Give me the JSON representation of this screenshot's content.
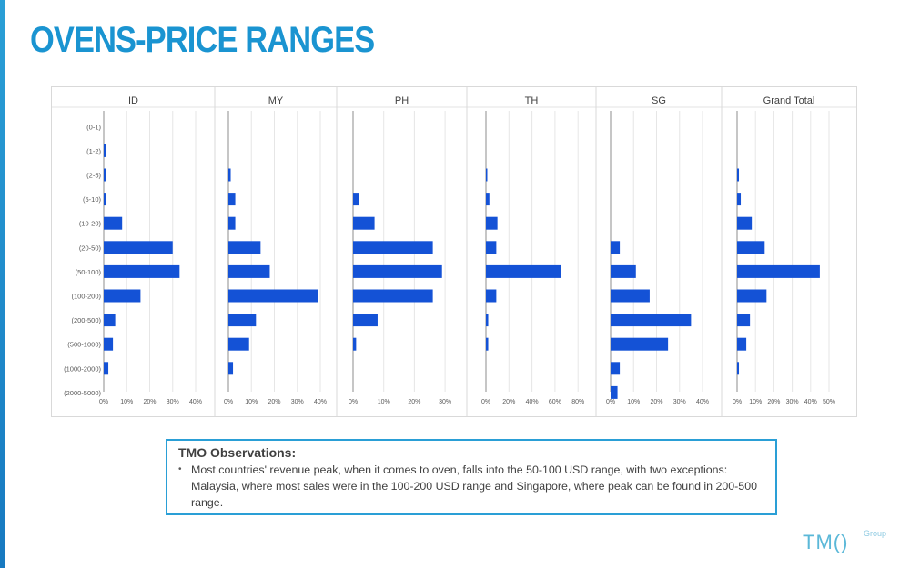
{
  "page": {
    "title": "OVENS-PRICE RANGES"
  },
  "chart_data": {
    "type": "bar",
    "orientation": "horizontal",
    "categories": [
      "(0-1)",
      "(1-2)",
      "(2-5)",
      "(5-10)",
      "(10-20)",
      "(20-50)",
      "(50-100)",
      "(100-200)",
      "(200-500)",
      "(500-1000)",
      "(1000-2000)",
      "(2000-5000)"
    ],
    "panels": [
      {
        "name": "ID",
        "xlim": [
          0,
          45
        ],
        "ticks": [
          0,
          10,
          20,
          30,
          40
        ],
        "tick_labels": [
          "0%",
          "10%",
          "20%",
          "30%",
          "40%"
        ],
        "values": [
          0,
          1,
          1,
          1,
          8,
          30,
          33,
          16,
          5,
          4,
          2,
          0
        ]
      },
      {
        "name": "MY",
        "xlim": [
          0,
          45
        ],
        "ticks": [
          0,
          10,
          20,
          30,
          40
        ],
        "tick_labels": [
          "0%",
          "10%",
          "20%",
          "30%",
          "40%"
        ],
        "values": [
          0,
          0,
          1,
          3,
          3,
          14,
          18,
          39,
          12,
          9,
          2,
          0
        ]
      },
      {
        "name": "PH",
        "xlim": [
          0,
          32
        ],
        "ticks": [
          0,
          10,
          20,
          30
        ],
        "tick_labels": [
          "0%",
          "10%",
          "20%",
          "30%"
        ],
        "values": [
          0,
          0,
          0,
          2,
          7,
          26,
          29,
          26,
          8,
          1,
          0,
          0
        ]
      },
      {
        "name": "TH",
        "xlim": [
          0,
          85
        ],
        "ticks": [
          0,
          20,
          40,
          60,
          80
        ],
        "tick_labels": [
          "0%",
          "20%",
          "40%",
          "60%",
          "80%"
        ],
        "values": [
          0,
          0,
          1,
          3,
          10,
          9,
          65,
          9,
          2,
          2,
          0,
          0
        ]
      },
      {
        "name": "SG",
        "xlim": [
          0,
          45
        ],
        "ticks": [
          0,
          10,
          20,
          30,
          40
        ],
        "tick_labels": [
          "0%",
          "10%",
          "20%",
          "30%",
          "40%"
        ],
        "values": [
          0,
          0,
          0,
          0,
          0,
          4,
          11,
          17,
          35,
          25,
          4,
          3
        ]
      },
      {
        "name": "Grand Total",
        "xlim": [
          0,
          54
        ],
        "ticks": [
          0,
          10,
          20,
          30,
          40,
          50
        ],
        "tick_labels": [
          "0%",
          "10%",
          "20%",
          "30%",
          "40%",
          "50%"
        ],
        "values": [
          0,
          0,
          1,
          2,
          8,
          15,
          45,
          16,
          7,
          5,
          1,
          0
        ]
      }
    ],
    "bar_color": "#1452d6",
    "grid": true,
    "legend": "none"
  },
  "observations": {
    "title": "TMO Observations:",
    "bullet": "•",
    "text": "Most countries' revenue peak, when it comes to oven, falls into the 50-100 USD range, with two exceptions: Malaysia, where most sales were in the 100-200 USD range and Singapore, where peak can be found in 200-500 range."
  },
  "logo": {
    "main": "TM()",
    "sub": "Group"
  },
  "colors": {
    "accent": "#1a94d1",
    "border": "#2a9fd6"
  }
}
